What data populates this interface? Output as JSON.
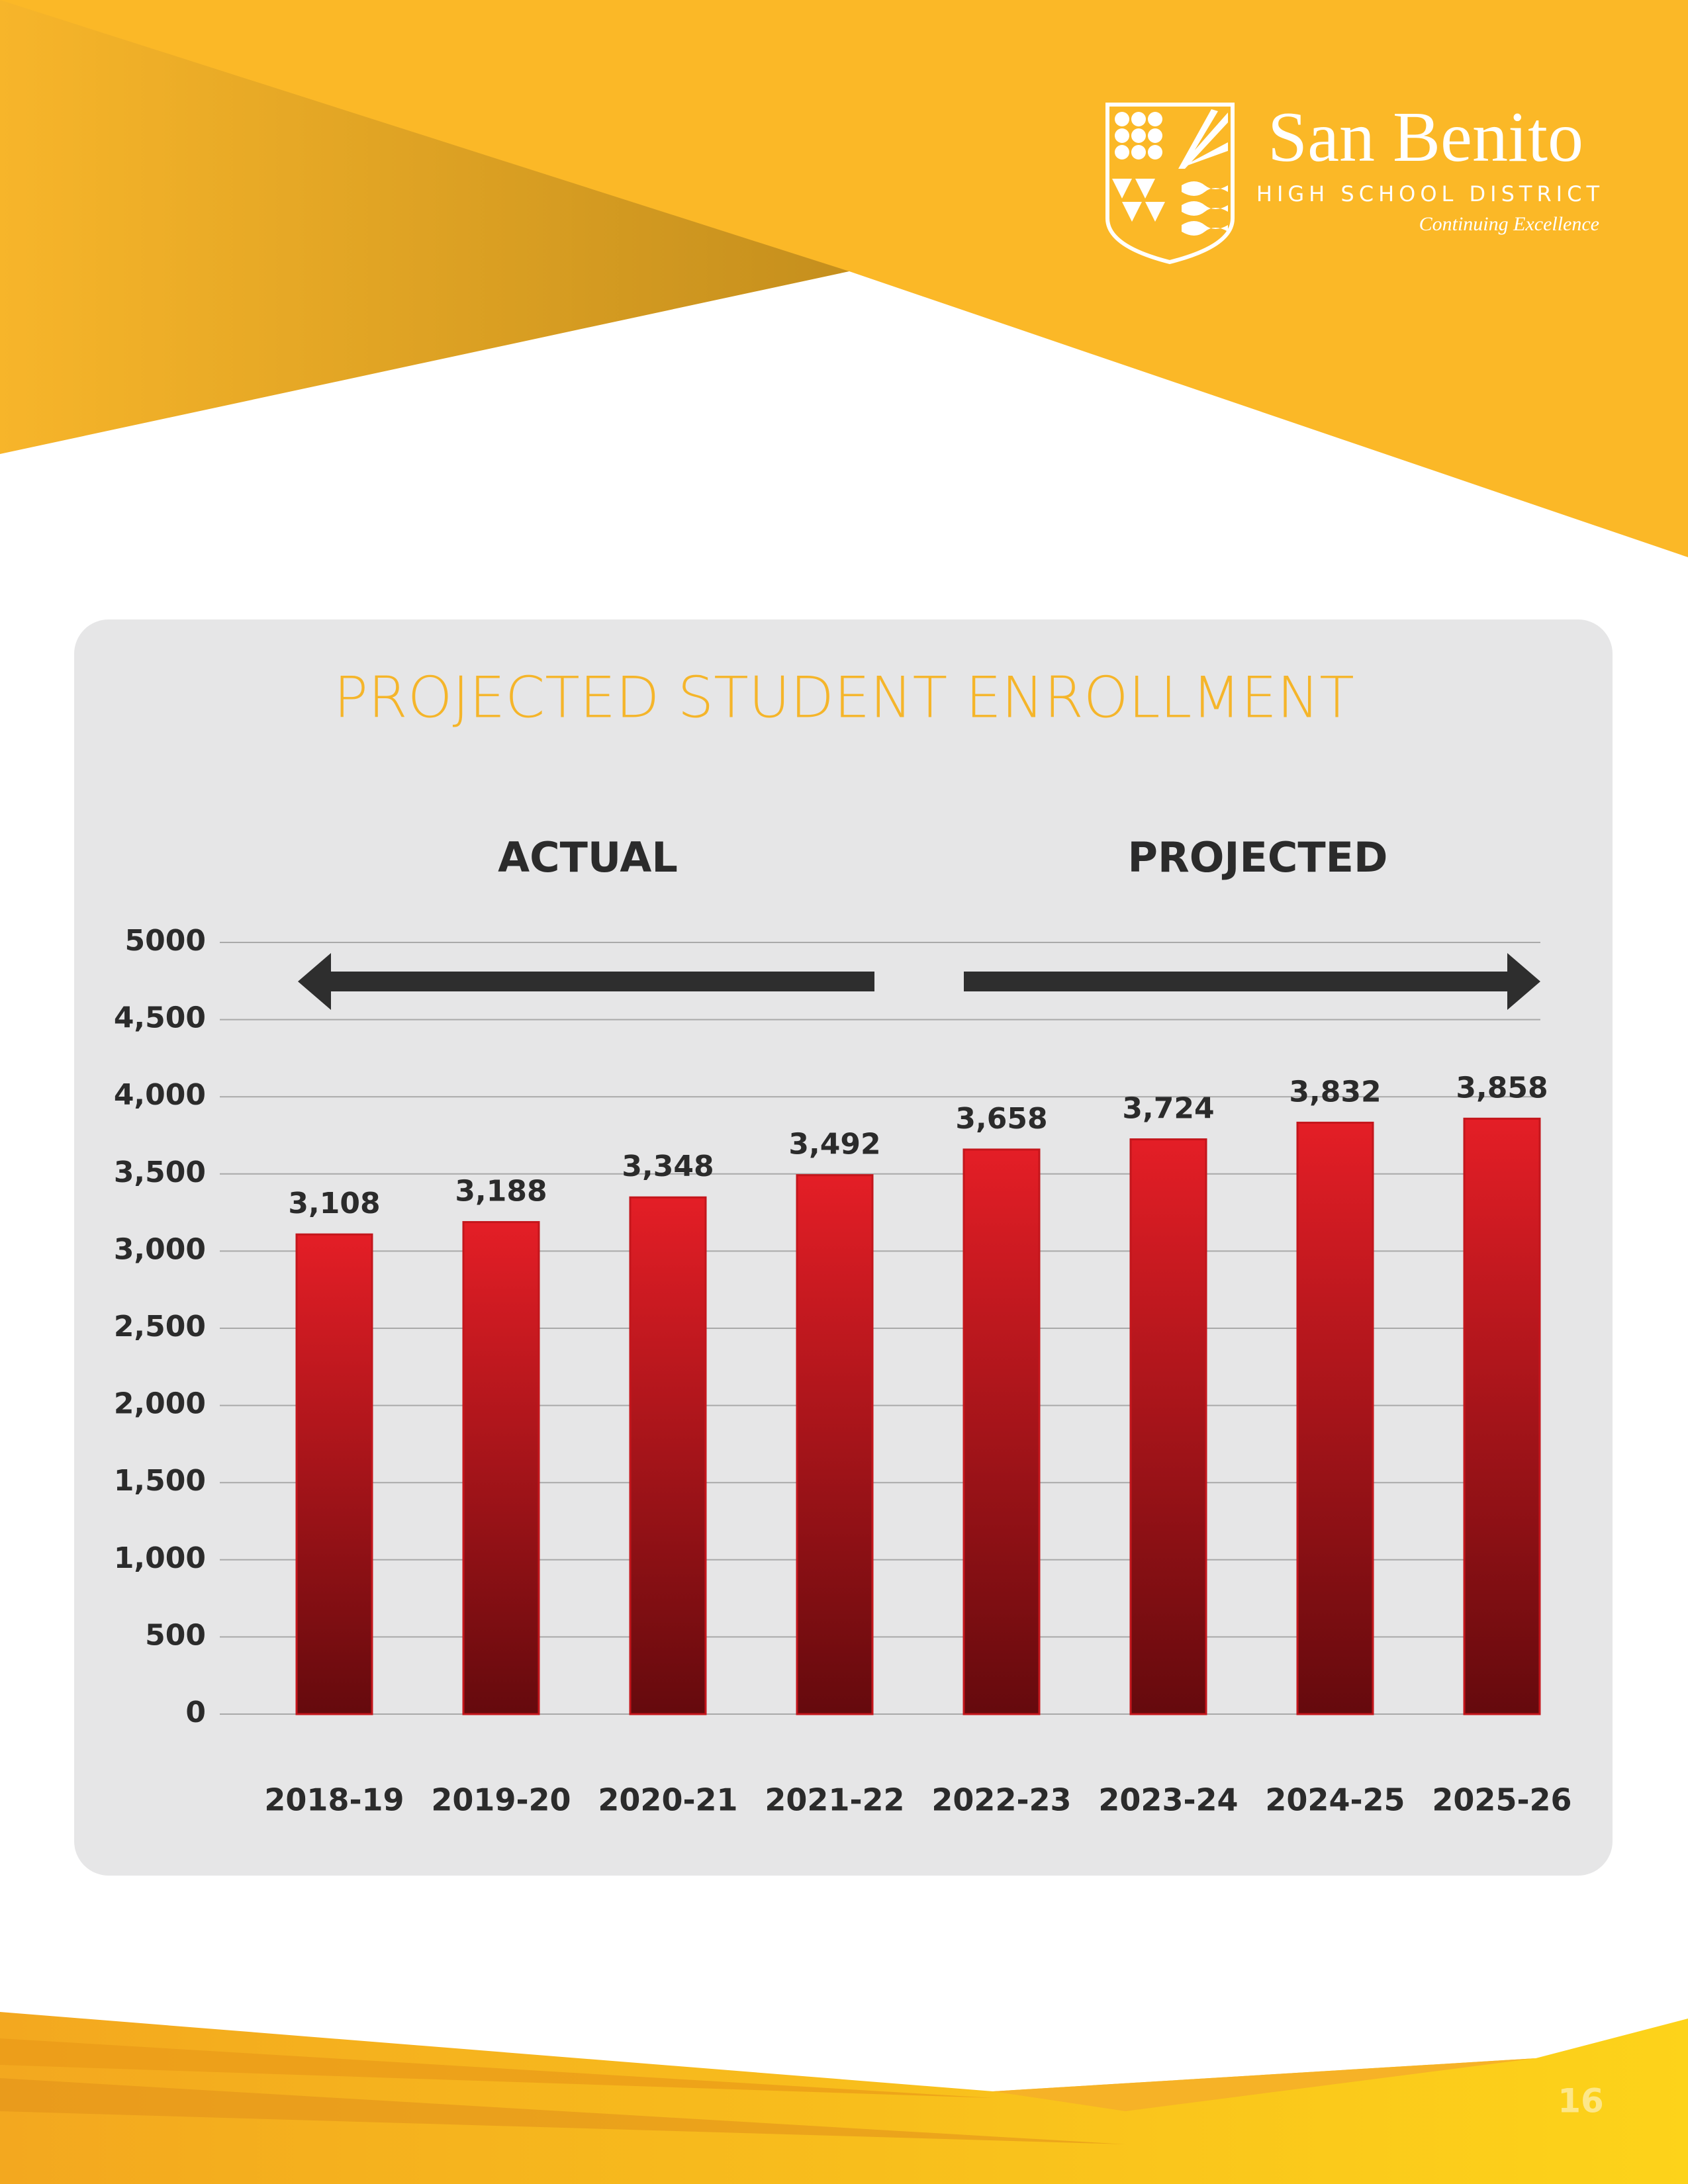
{
  "header": {
    "logo_name": "San Benito",
    "logo_subtitle": "HIGH SCHOOL DISTRICT",
    "logo_tagline": "Continuing Excellence"
  },
  "chart_data": {
    "type": "bar",
    "title": "PROJECTED STUDENT ENROLLMENT",
    "annotations": [
      "ACTUAL",
      "PROJECTED"
    ],
    "categories": [
      "2018-19",
      "2019-20",
      "2020-21",
      "2021-22",
      "2022-23",
      "2023-24",
      "2024-25",
      "2025-26"
    ],
    "values": [
      3108,
      3188,
      3348,
      3492,
      3658,
      3724,
      3832,
      3858
    ],
    "value_labels": [
      "3,108",
      "3,188",
      "3,348",
      "3,492",
      "3,658",
      "3,724",
      "3,832",
      "3,858"
    ],
    "color": "#e41e26",
    "ylim": [
      0,
      5000
    ],
    "yticks": [
      0,
      500,
      {
        "value": 1000,
        "label": "1,000"
      },
      {
        "value": 1500,
        "label": "1,500"
      },
      {
        "value": 2000,
        "label": "2,000"
      },
      {
        "value": 2500,
        "label": "2,500"
      },
      {
        "value": 3000,
        "label": "3,000"
      },
      {
        "value": 3500,
        "label": "3,500"
      },
      {
        "value": 4000,
        "label": "4,000"
      },
      {
        "value": 4500,
        "label": "4,500"
      },
      5000
    ],
    "grid": true
  },
  "page_number": "16"
}
